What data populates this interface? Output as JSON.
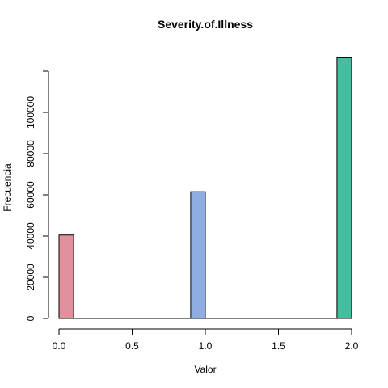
{
  "chart_data": {
    "type": "bar",
    "title": "Severity.of.Illness",
    "xlabel": "Valor",
    "ylabel": "Frecuencia",
    "xlim": [
      0,
      2
    ],
    "ylim": [
      0,
      120000
    ],
    "x_ticks": [
      "0.0",
      "0.5",
      "1.0",
      "1.5",
      "2.0"
    ],
    "y_ticks": [
      "0",
      "20000",
      "40000",
      "60000",
      "80000",
      "100000"
    ],
    "grid": false,
    "legend": "none",
    "bin_width": 0.1,
    "bars": [
      {
        "x_start": 0.0,
        "x_end": 0.1,
        "value": 40500,
        "color": "#E0919C"
      },
      {
        "x_start": 0.9,
        "x_end": 1.0,
        "value": 61500,
        "color": "#8FADE0"
      },
      {
        "x_start": 1.9,
        "x_end": 2.0,
        "value": 126500,
        "color": "#43BFA0"
      }
    ]
  }
}
